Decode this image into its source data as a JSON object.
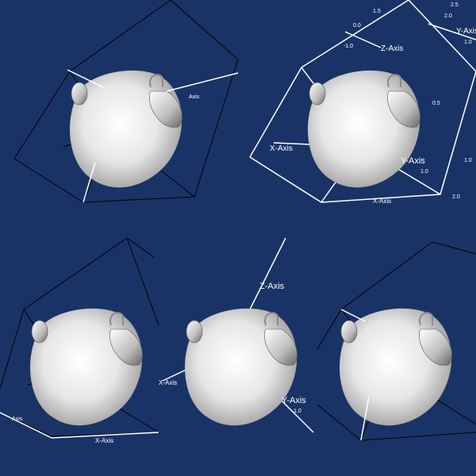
{
  "scene": {
    "background_color": "#1a3366",
    "object": "teapot",
    "object_color": "#e8e8e8"
  },
  "panes": [
    {
      "id": "top-left",
      "bounding_box": "black-cube",
      "axes_labels": {
        "x": "",
        "y": "Axis",
        "z": ""
      },
      "tick_labels": []
    },
    {
      "id": "top-right",
      "bounding_box": "white-wire-cube",
      "axes_labels": {
        "x": "X-Axis",
        "y": "Y-Axis",
        "z": "Z-Axis"
      },
      "extra_labels": [
        "Y-Axis",
        "X-Axis"
      ],
      "tick_labels": [
        "2.5",
        "2.0",
        "1.5",
        "1.0",
        "0.5",
        "0.0",
        "-1.0",
        "1.0",
        "2.0",
        "1.0"
      ]
    },
    {
      "id": "bottom-left",
      "bounding_box": "black-cube",
      "axes_labels": {
        "x": "X-Axis",
        "y": "",
        "z": ""
      },
      "tick_labels": [
        "Axis"
      ]
    },
    {
      "id": "bottom-center",
      "bounding_box": "none",
      "axes_labels": {
        "x": "X-Axis",
        "y": "Y-Axis",
        "z": "Z-Axis"
      },
      "tick_labels": [
        "1.0"
      ]
    },
    {
      "id": "bottom-right",
      "bounding_box": "black-cube",
      "axes_labels": {
        "x": "",
        "y": "",
        "z": ""
      },
      "tick_labels": []
    }
  ]
}
